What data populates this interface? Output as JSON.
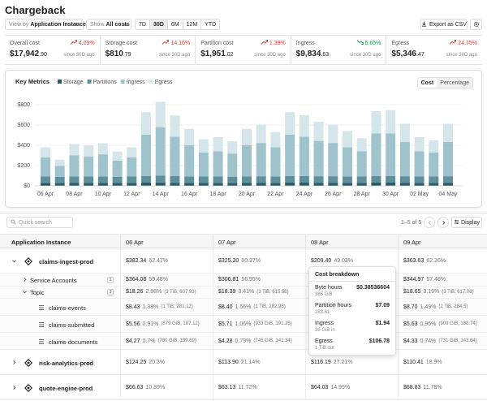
{
  "header": {
    "title": "Chargeback"
  },
  "toolbar": {
    "view_by_label": "View by",
    "view_by": "Application Instance",
    "show_label": "Show",
    "show": "All costs",
    "ranges": [
      "7D",
      "30D",
      "6M",
      "12M",
      "YTD"
    ],
    "active_range": "30D",
    "export": "Export as CSV"
  },
  "kpis": [
    {
      "label": "Overall cost",
      "change": "4.09%",
      "trend": "up",
      "amount": "$17,942",
      "fraction": ".90",
      "since": "since 30D ago"
    },
    {
      "label": "Storage cost",
      "change": "14.16%",
      "trend": "up",
      "amount": "$810",
      "fraction": ".79",
      "since": "since 30D ago"
    },
    {
      "label": "Partition cost",
      "change": "1.39%",
      "trend": "up",
      "amount": "$1,951",
      "fraction": ".02",
      "since": "since 30D ago"
    },
    {
      "label": "Ingress",
      "change": "6.65%",
      "trend": "down",
      "amount": "$9,834",
      "fraction": ".63",
      "since": "since 30D ago"
    },
    {
      "label": "Egress",
      "change": "24.75%",
      "trend": "up",
      "amount": "$5,346",
      "fraction": ".47",
      "since": "since 30D ago"
    }
  ],
  "chart_data": {
    "type": "stacked_bar",
    "title": "Key Metrics",
    "legend": "top-left",
    "grid": true,
    "modes": [
      "Cost",
      "Percentage"
    ],
    "active_mode": "Cost",
    "categories": [
      "06 Apr",
      null,
      "08 Apr",
      null,
      "10 Apr",
      null,
      "12 Apr",
      null,
      "14 Apr",
      null,
      "16 Apr",
      null,
      "18 Apr",
      null,
      "20 Apr",
      null,
      "22 Apr",
      null,
      "24 Apr",
      null,
      "26 Apr",
      null,
      "28 Apr",
      null,
      "30 Apr",
      null,
      "02 May",
      null,
      "04 May"
    ],
    "series": [
      {
        "name": "Storage",
        "color": "#2c5a66",
        "values": [
          30,
          29,
          31,
          30,
          30,
          29,
          30,
          32,
          33,
          31,
          30,
          30,
          30,
          29,
          31,
          31,
          30,
          32,
          32,
          31,
          31,
          30,
          30,
          32,
          32,
          31,
          30,
          30,
          31
        ]
      },
      {
        "name": "Partitions",
        "color": "#5f8f9d",
        "values": [
          62,
          60,
          63,
          62,
          63,
          61,
          62,
          66,
          67,
          65,
          63,
          62,
          62,
          62,
          63,
          64,
          63,
          66,
          65,
          64,
          64,
          63,
          62,
          66,
          66,
          64,
          62,
          62,
          64
        ]
      },
      {
        "name": "Ingress",
        "color": "#9fc3cc",
        "values": [
          188,
          108,
          208,
          198,
          218,
          158,
          188,
          408,
          478,
          388,
          308,
          238,
          248,
          228,
          308,
          328,
          288,
          408,
          388,
          348,
          328,
          288,
          248,
          418,
          418,
          338,
          248,
          238,
          338
        ]
      },
      {
        "name": "Egress",
        "color": "#d4e6ea",
        "values": [
          100,
          60,
          110,
          110,
          110,
          90,
          100,
          220,
          250,
          210,
          160,
          130,
          140,
          120,
          160,
          180,
          150,
          220,
          210,
          190,
          180,
          160,
          130,
          220,
          230,
          180,
          140,
          120,
          180
        ]
      }
    ],
    "ylim": [
      0,
      860
    ],
    "yticks": [
      {
        "value": 0,
        "label": "$0"
      },
      {
        "value": 200,
        "label": "$200"
      },
      {
        "value": 400,
        "label": "$400"
      },
      {
        "value": 600,
        "label": "$600"
      },
      {
        "value": 800,
        "label": "$800"
      }
    ]
  },
  "table": {
    "search_placeholder": "Quick search",
    "pagination": "1–5 of 5",
    "display": "Display",
    "columns": [
      "Application Instance",
      "06 Apr",
      "07 Apr",
      "08 Apr",
      "09 Apr"
    ],
    "rows": [
      {
        "name": "claims-ingest-prod",
        "level": 0,
        "expanded": true,
        "cells": [
          {
            "cost": "$382.34",
            "pct": "62.47%"
          },
          {
            "cost": "$325.20",
            "pct": "60.37%"
          },
          {
            "cost": "$209.40",
            "pct": "49.03%"
          },
          {
            "cost": "$363.63",
            "pct": "62.26%"
          }
        ]
      },
      {
        "name": "Service Accounts",
        "level": 1,
        "expanded": false,
        "badge": "1",
        "cells": [
          {
            "cost": "$364.08",
            "pct": "59.48%"
          },
          {
            "cost": "$306.81",
            "pct": "56.95%"
          },
          null,
          {
            "cost": "$344.97",
            "pct": "57.48%"
          }
        ]
      },
      {
        "name": "Topic",
        "level": 1,
        "expanded": true,
        "badge": "3",
        "cells": [
          {
            "cost": "$18.26",
            "pct": "2.98%",
            "detail": "(3 TiB, 607.93)"
          },
          {
            "cost": "$18.39",
            "pct": "3.41%",
            "detail": "(3 TiB, 615.58)"
          },
          null,
          {
            "cost": "$18.65",
            "pct": "3.19%",
            "detail": "(3 TiB, 617.08)"
          }
        ]
      },
      {
        "name": "claims-events",
        "level": 2,
        "cells": [
          {
            "cost": "$8.43",
            "pct": "1.38%",
            "detail": "(1 TiB, 281.12)"
          },
          {
            "cost": "$8.40",
            "pct": "1.56%",
            "detail": "(1 TiB, 282.98)"
          },
          null,
          {
            "cost": "$8.70",
            "pct": "1.49%",
            "detail": "(2 TiB, 284.5)"
          }
        ]
      },
      {
        "name": "claims-submitted",
        "level": 2,
        "cells": [
          {
            "cost": "$5.56",
            "pct": "0.91%",
            "detail": "(879 GiB, 187.12)"
          },
          {
            "cost": "$5.71",
            "pct": "1.06%",
            "detail": "(933 GiB, 191.25)"
          },
          null,
          {
            "cost": "$5.63",
            "pct": "0.96%",
            "detail": "(909 GiB, 188.74)"
          }
        ]
      },
      {
        "name": "claims-documents",
        "level": 2,
        "cells": [
          {
            "cost": "$4.27",
            "pct": "0.7%",
            "detail": "(780 GiB, 139.69)"
          },
          {
            "cost": "$4.28",
            "pct": "0.79%",
            "detail": "(745 GiB, 141.34)"
          },
          null,
          {
            "cost": "$4.33",
            "pct": "0.74%",
            "detail": "(731 GiB, 143.64)"
          }
        ]
      },
      {
        "name": "risk-analytics-prod",
        "level": 0,
        "expanded": false,
        "cells": [
          {
            "cost": "$124.25",
            "pct": "20.3%"
          },
          {
            "cost": "$113.90",
            "pct": "21.14%"
          },
          {
            "cost": "$116.19",
            "pct": "27.21%"
          },
          {
            "cost": "$110.41",
            "pct": "18.9%"
          }
        ]
      },
      {
        "name": "quote-engine-prod",
        "level": 0,
        "expanded": false,
        "cells": [
          {
            "cost": "$66.63",
            "pct": "10.89%"
          },
          {
            "cost": "$63.13",
            "pct": "11.72%"
          },
          {
            "cost": "$64.03",
            "pct": "14.99%"
          },
          {
            "cost": "$68.83",
            "pct": "11.78%"
          }
        ]
      }
    ]
  },
  "tooltip": {
    "title": "Cost breakdown",
    "items": [
      {
        "label": "Byte hours",
        "value": "$0.38536604",
        "sub": "385 GiB"
      },
      {
        "label": "Partition hours",
        "value": "$7.09",
        "sub": "283.61"
      },
      {
        "label": "Ingress",
        "value": "$1.94",
        "sub": "39 GiB in"
      },
      {
        "label": "Egress",
        "value": "$106.78",
        "sub": "1 TiB out"
      }
    ]
  }
}
